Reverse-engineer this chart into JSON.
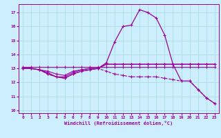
{
  "background_color": "#cceeff",
  "grid_color": "#aadddd",
  "line_color": "#990099",
  "xlabel": "Windchill (Refroidissement éolien,°C)",
  "xlim": [
    -0.5,
    23.5
  ],
  "ylim": [
    9.8,
    17.6
  ],
  "yticks": [
    10,
    11,
    12,
    13,
    14,
    15,
    16,
    17
  ],
  "xticks": [
    0,
    1,
    2,
    3,
    4,
    5,
    6,
    7,
    8,
    9,
    10,
    11,
    12,
    13,
    14,
    15,
    16,
    17,
    18,
    19,
    20,
    21,
    22,
    23
  ],
  "series": [
    {
      "x": [
        0,
        1,
        2,
        3,
        4,
        5,
        6,
        7,
        8,
        9,
        10,
        11,
        12,
        13,
        14,
        15,
        16,
        17,
        18,
        19,
        20,
        21,
        22,
        23
      ],
      "y": [
        13.1,
        13.1,
        13.1,
        13.1,
        13.1,
        13.1,
        13.1,
        13.1,
        13.1,
        13.1,
        13.1,
        13.1,
        13.1,
        13.1,
        13.1,
        13.1,
        13.1,
        13.1,
        13.1,
        13.1,
        13.1,
        13.1,
        13.1,
        13.1
      ],
      "style": "-",
      "marker": "+",
      "lw": 0.8
    },
    {
      "x": [
        0,
        1,
        2,
        3,
        4,
        5,
        6,
        7,
        8,
        9,
        10,
        11,
        12,
        13,
        14,
        15,
        16,
        17,
        18,
        19,
        20,
        21,
        22,
        23
      ],
      "y": [
        13.0,
        13.0,
        12.9,
        12.8,
        12.6,
        12.5,
        12.8,
        12.9,
        13.0,
        13.0,
        13.3,
        13.3,
        13.3,
        13.3,
        13.3,
        13.3,
        13.3,
        13.3,
        13.3,
        13.3,
        13.3,
        13.3,
        13.3,
        13.3
      ],
      "style": "-",
      "marker": "+",
      "lw": 0.8
    },
    {
      "x": [
        0,
        1,
        2,
        3,
        4,
        5,
        6,
        7,
        8,
        9,
        10,
        11,
        12,
        13,
        14,
        15,
        16,
        17,
        18,
        19,
        20,
        21,
        22,
        23
      ],
      "y": [
        13.0,
        13.0,
        12.9,
        12.7,
        12.4,
        12.4,
        12.7,
        12.9,
        13.0,
        13.0,
        13.3,
        13.3,
        13.3,
        13.3,
        13.3,
        13.3,
        13.3,
        13.3,
        13.3,
        13.3,
        13.3,
        13.3,
        13.3,
        13.3
      ],
      "style": "-",
      "marker": "+",
      "lw": 0.8
    },
    {
      "x": [
        0,
        1,
        2,
        3,
        4,
        5,
        6,
        7,
        8,
        9,
        10,
        11,
        12,
        13,
        14,
        15,
        16,
        17,
        18,
        19,
        20,
        21,
        22,
        23
      ],
      "y": [
        13.0,
        13.0,
        12.9,
        12.6,
        12.4,
        12.3,
        12.6,
        12.8,
        12.9,
        13.0,
        12.8,
        12.6,
        12.5,
        12.4,
        12.4,
        12.4,
        12.4,
        12.3,
        12.2,
        12.1,
        12.1,
        11.5,
        10.9,
        10.5
      ],
      "style": "--",
      "marker": "+",
      "lw": 0.8
    },
    {
      "x": [
        0,
        1,
        2,
        3,
        4,
        5,
        6,
        7,
        8,
        9,
        10,
        11,
        12,
        13,
        14,
        15,
        16,
        17,
        18,
        19,
        20,
        21,
        22,
        23
      ],
      "y": [
        13.0,
        13.0,
        12.9,
        12.6,
        12.4,
        12.3,
        12.6,
        12.8,
        12.9,
        13.0,
        13.4,
        14.9,
        16.0,
        16.1,
        17.2,
        17.0,
        16.6,
        15.4,
        13.3,
        12.1,
        12.1,
        11.5,
        10.9,
        10.5
      ],
      "style": "-",
      "marker": "+",
      "lw": 0.9
    }
  ]
}
